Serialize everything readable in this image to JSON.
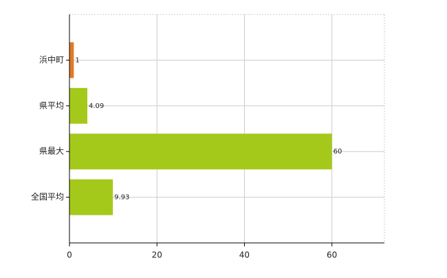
{
  "chart_data": {
    "type": "hbar",
    "categories": [
      "浜中町",
      "県平均",
      "県最大",
      "全国平均"
    ],
    "values": [
      1,
      4.09,
      60,
      9.93
    ],
    "colors": [
      "#e07b28",
      "#a5c91b",
      "#a5c91b",
      "#a5c91b"
    ],
    "xlim": [
      0,
      72
    ],
    "xticks": [
      0,
      20,
      40,
      60
    ],
    "grid": true
  }
}
